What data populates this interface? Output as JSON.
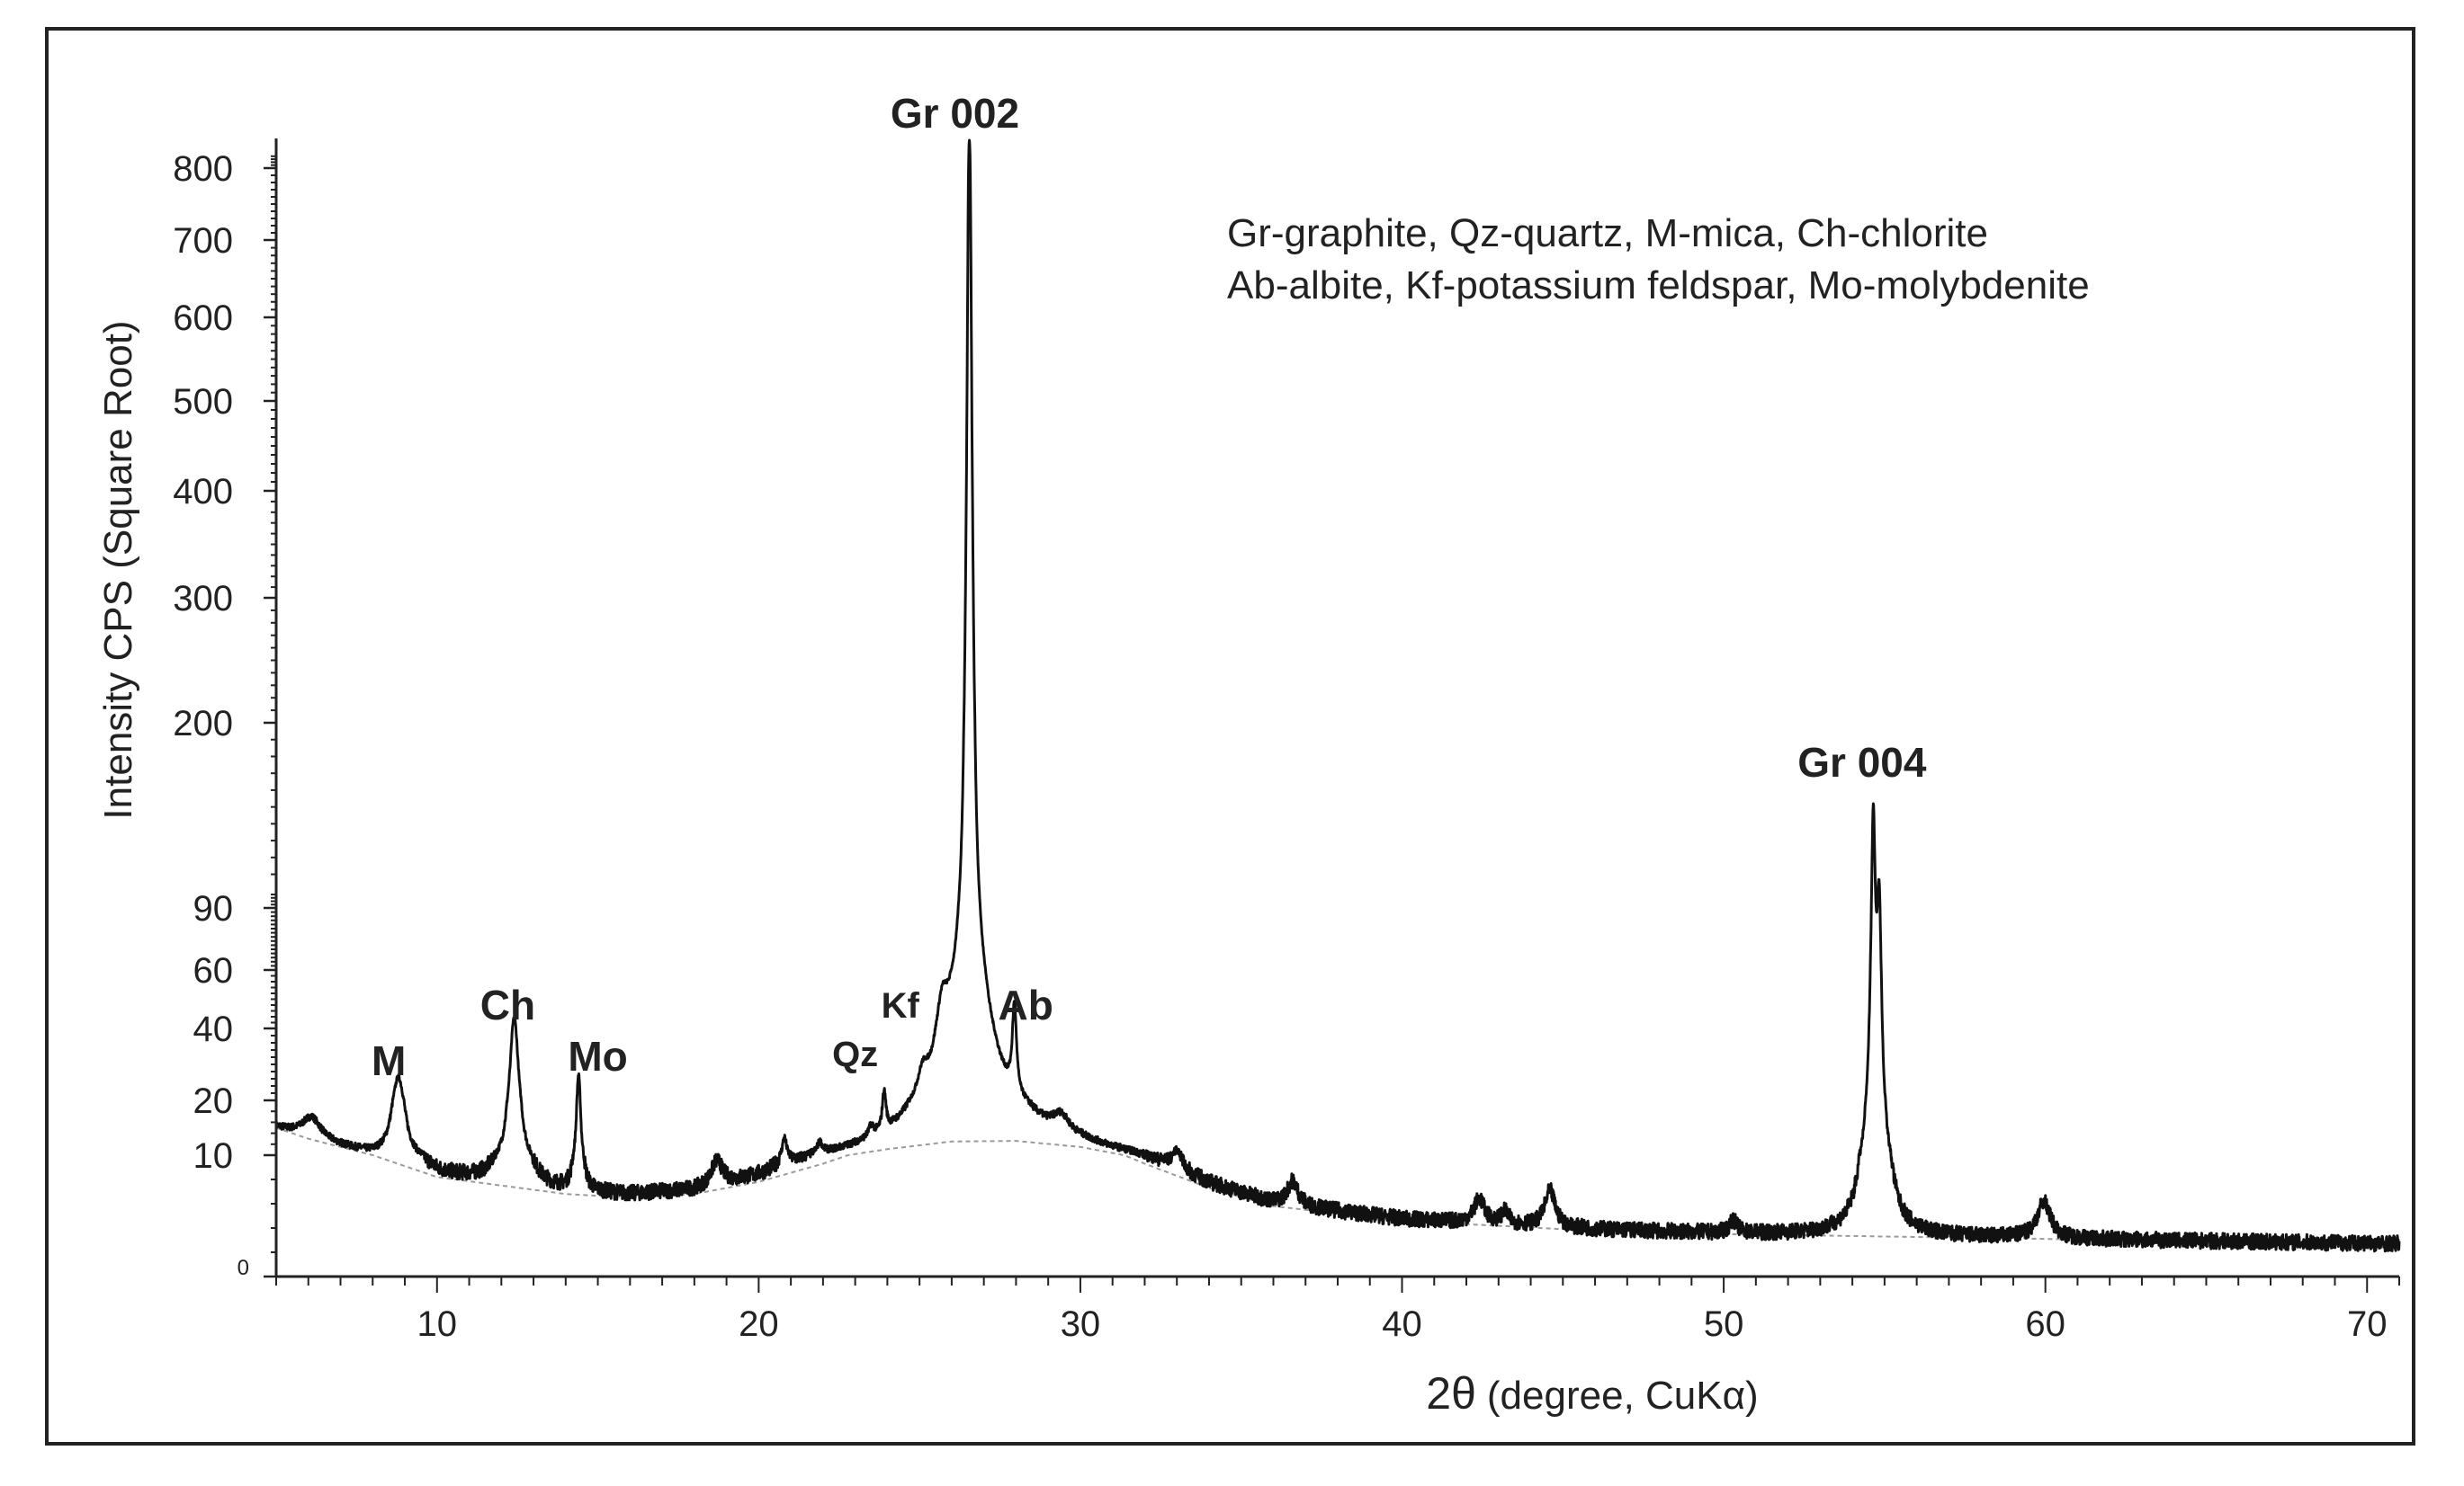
{
  "chart_data": {
    "type": "line",
    "title": "",
    "xlabel": "2θ (degree, CuKα)",
    "xlabel_main": "2θ",
    "xlabel_unit": "(degree, CuKα)",
    "ylabel": "Intensity CPS (Square Root)",
    "xlim": [
      5,
      71
    ],
    "x_ticks": [
      10,
      20,
      30,
      40,
      50,
      60,
      70
    ],
    "y_scale": "sqrt (broken axis)",
    "y_ticks": [
      {
        "label": "0",
        "value": 0
      },
      {
        "label": "10",
        "value": 10
      },
      {
        "label": "20",
        "value": 20
      },
      {
        "label": "40",
        "value": 40
      },
      {
        "label": "60",
        "value": 60
      },
      {
        "label": "90",
        "value": 90
      },
      {
        "label": "200",
        "value": 200
      },
      {
        "label": "300",
        "value": 300
      },
      {
        "label": "400",
        "value": 400
      },
      {
        "label": "500",
        "value": 500
      },
      {
        "label": "600",
        "value": 600
      },
      {
        "label": "700",
        "value": 700
      },
      {
        "label": "800",
        "value": 800
      }
    ],
    "legend_lines": [
      "Gr-graphite, Qz-quartz, M-mica, Ch-chlorite",
      "Ab-albite, Kf-potassium feldspar, Mo-molybdenite"
    ],
    "legend_position": "top-right",
    "grid": false,
    "series": [
      {
        "color": "#111111",
        "peaks": [
          {
            "x": 6.1,
            "y": 4,
            "w": 0.35
          },
          {
            "x": 8.8,
            "y": 17,
            "w": 0.22
          },
          {
            "x": 12.4,
            "y": 36,
            "w": 0.16
          },
          {
            "x": 14.4,
            "y": 20,
            "w": 0.07
          },
          {
            "x": 18.7,
            "y": 2,
            "w": 0.2
          },
          {
            "x": 20.8,
            "y": 4,
            "w": 0.08
          },
          {
            "x": 21.9,
            "y": 2,
            "w": 0.1
          },
          {
            "x": 23.5,
            "y": 2,
            "w": 0.1
          },
          {
            "x": 23.9,
            "y": 8,
            "w": 0.06
          },
          {
            "x": 25.1,
            "y": 7,
            "w": 0.2
          },
          {
            "x": 25.7,
            "y": 18,
            "w": 0.22
          },
          {
            "x": 26.55,
            "y": 840,
            "w": 0.08
          },
          {
            "x": 26.55,
            "y": 40,
            "w": 0.7
          },
          {
            "x": 27.95,
            "y": 26,
            "w": 0.07
          },
          {
            "x": 29.4,
            "y": 3,
            "w": 0.3
          },
          {
            "x": 33.0,
            "y": 2,
            "w": 0.15
          },
          {
            "x": 36.6,
            "y": 2,
            "w": 0.2
          },
          {
            "x": 42.4,
            "y": 2,
            "w": 0.2
          },
          {
            "x": 43.2,
            "y": 1,
            "w": 0.15
          },
          {
            "x": 44.6,
            "y": 3,
            "w": 0.2
          },
          {
            "x": 50.3,
            "y": 1,
            "w": 0.15
          },
          {
            "x": 54.65,
            "y": 130,
            "w": 0.07
          },
          {
            "x": 54.83,
            "y": 80,
            "w": 0.07
          },
          {
            "x": 54.7,
            "y": 8,
            "w": 0.3
          },
          {
            "x": 59.95,
            "y": 3,
            "w": 0.25
          }
        ],
        "background": {
          "x": [
            5,
            6,
            8,
            10,
            12,
            14,
            16,
            18,
            20,
            22,
            24,
            26,
            28,
            30,
            32,
            34,
            36,
            40,
            45,
            50,
            55,
            60,
            65,
            71
          ],
          "y": [
            15,
            13,
            10,
            8.2,
            7.5,
            6.8,
            6.5,
            6.8,
            7.8,
            9.3,
            11.1,
            12.5,
            12.6,
            11.5,
            9.3,
            7.3,
            5.8,
            4.6,
            3.9,
            3.5,
            3.3,
            3.1,
            2.9,
            2.7
          ]
        }
      }
    ],
    "annotations": [
      {
        "text": "M",
        "x": 8.5,
        "bold": true,
        "size": 46
      },
      {
        "text": "Ch",
        "x": 12.2,
        "bold": true,
        "size": 46
      },
      {
        "text": "Mo",
        "x": 15.0,
        "bold": true,
        "size": 46
      },
      {
        "text": "Qz",
        "x": 23.0,
        "bold": true,
        "size": 40
      },
      {
        "text": "Kf",
        "x": 24.4,
        "bold": true,
        "size": 40
      },
      {
        "text": "Ab",
        "x": 28.3,
        "bold": true,
        "size": 46
      },
      {
        "text": "Gr 002",
        "x": 26.1,
        "bold": true,
        "size": 46
      },
      {
        "text": "Gr 004",
        "x": 54.3,
        "bold": true,
        "size": 46
      }
    ]
  }
}
